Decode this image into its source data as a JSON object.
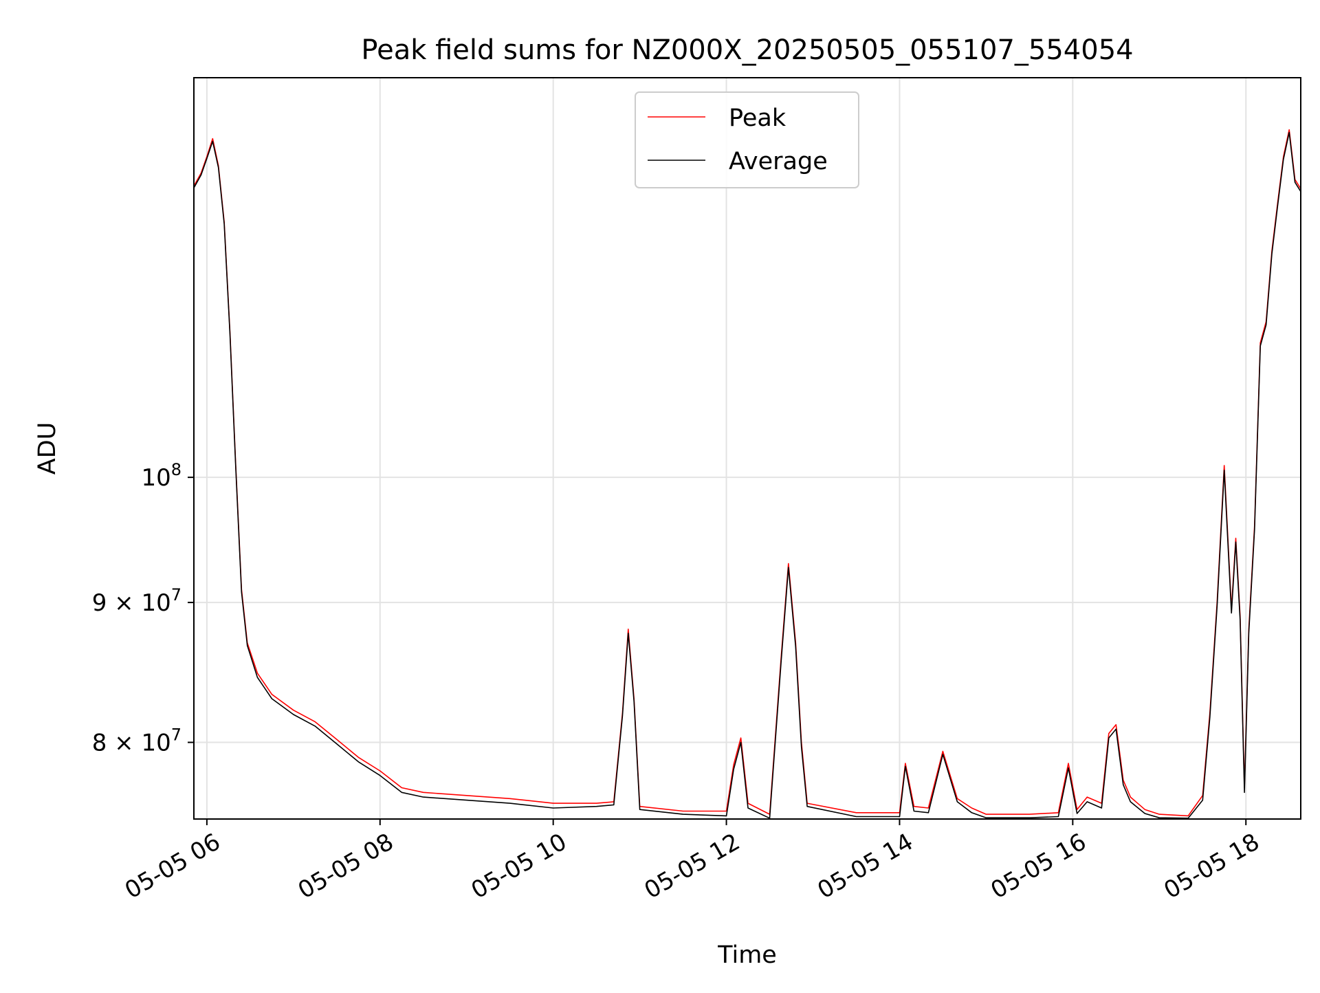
{
  "chart_data": {
    "type": "line",
    "title": "Peak field sums for NZ000X_20250505_055107_554054",
    "xlabel": "Time",
    "ylabel": "ADU",
    "yscale": "log",
    "grid": true,
    "legend_position": "top-center",
    "xlim": [
      "2025-05-05 05:51",
      "2025-05-05 18:38"
    ],
    "ylim": [
      75000000,
      140000000
    ],
    "x_ticks": [
      {
        "value": "2025-05-05 06:00",
        "label": "05-05 06"
      },
      {
        "value": "2025-05-05 08:00",
        "label": "05-05 08"
      },
      {
        "value": "2025-05-05 10:00",
        "label": "05-05 10"
      },
      {
        "value": "2025-05-05 12:00",
        "label": "05-05 12"
      },
      {
        "value": "2025-05-05 14:00",
        "label": "05-05 14"
      },
      {
        "value": "2025-05-05 16:00",
        "label": "05-05 16"
      },
      {
        "value": "2025-05-05 18:00",
        "label": "05-05 18"
      }
    ],
    "y_ticks": [
      {
        "value": 80000000,
        "base": "8 × 10",
        "exp": "7"
      },
      {
        "value": 90000000,
        "base": "9 × 10",
        "exp": "7"
      },
      {
        "value": 100000000,
        "base": "10",
        "exp": "8"
      }
    ],
    "series": [
      {
        "name": "Peak",
        "color": "#ff0000",
        "points": [
          [
            "2025-05-05 05:51",
            127800000
          ],
          [
            "2025-05-05 05:56",
            129200000
          ],
          [
            "2025-05-05 06:00",
            131000000
          ],
          [
            "2025-05-05 06:04",
            133000000
          ],
          [
            "2025-05-05 06:08",
            130000000
          ],
          [
            "2025-05-05 06:12",
            124000000
          ],
          [
            "2025-05-05 06:16",
            113000000
          ],
          [
            "2025-05-05 06:20",
            101000000
          ],
          [
            "2025-05-05 06:24",
            91000000
          ],
          [
            "2025-05-05 06:28",
            87000000
          ],
          [
            "2025-05-05 06:35",
            84800000
          ],
          [
            "2025-05-05 06:45",
            83300000
          ],
          [
            "2025-05-05 07:00",
            82200000
          ],
          [
            "2025-05-05 07:15",
            81400000
          ],
          [
            "2025-05-05 07:30",
            80200000
          ],
          [
            "2025-05-05 07:45",
            79000000
          ],
          [
            "2025-05-05 08:00",
            78100000
          ],
          [
            "2025-05-05 08:15",
            77000000
          ],
          [
            "2025-05-05 08:30",
            76700000
          ],
          [
            "2025-05-05 09:00",
            76500000
          ],
          [
            "2025-05-05 09:30",
            76300000
          ],
          [
            "2025-05-05 10:00",
            76000000
          ],
          [
            "2025-05-05 10:30",
            76000000
          ],
          [
            "2025-05-05 10:42",
            76100000
          ],
          [
            "2025-05-05 10:48",
            82000000
          ],
          [
            "2025-05-05 10:52",
            88000000
          ],
          [
            "2025-05-05 10:56",
            83000000
          ],
          [
            "2025-05-05 11:00",
            75800000
          ],
          [
            "2025-05-05 11:30",
            75500000
          ],
          [
            "2025-05-05 12:00",
            75500000
          ],
          [
            "2025-05-05 12:05",
            78500000
          ],
          [
            "2025-05-05 12:10",
            80300000
          ],
          [
            "2025-05-05 12:15",
            76000000
          ],
          [
            "2025-05-05 12:30",
            75300000
          ],
          [
            "2025-05-05 12:38",
            86000000
          ],
          [
            "2025-05-05 12:43",
            93000000
          ],
          [
            "2025-05-05 12:48",
            87000000
          ],
          [
            "2025-05-05 12:52",
            80000000
          ],
          [
            "2025-05-05 12:56",
            76000000
          ],
          [
            "2025-05-05 13:30",
            75400000
          ],
          [
            "2025-05-05 14:00",
            75400000
          ],
          [
            "2025-05-05 14:04",
            78600000
          ],
          [
            "2025-05-05 14:10",
            75800000
          ],
          [
            "2025-05-05 14:20",
            75700000
          ],
          [
            "2025-05-05 14:30",
            79400000
          ],
          [
            "2025-05-05 14:40",
            76300000
          ],
          [
            "2025-05-05 14:50",
            75700000
          ],
          [
            "2025-05-05 15:00",
            75300000
          ],
          [
            "2025-05-05 15:30",
            75300000
          ],
          [
            "2025-05-05 15:50",
            75400000
          ],
          [
            "2025-05-05 15:57",
            78600000
          ],
          [
            "2025-05-05 16:03",
            75600000
          ],
          [
            "2025-05-05 16:10",
            76400000
          ],
          [
            "2025-05-05 16:20",
            76000000
          ],
          [
            "2025-05-05 16:25",
            80600000
          ],
          [
            "2025-05-05 16:30",
            81200000
          ],
          [
            "2025-05-05 16:35",
            77500000
          ],
          [
            "2025-05-05 16:40",
            76400000
          ],
          [
            "2025-05-05 16:50",
            75600000
          ],
          [
            "2025-05-05 17:00",
            75300000
          ],
          [
            "2025-05-05 17:20",
            75200000
          ],
          [
            "2025-05-05 17:30",
            76500000
          ],
          [
            "2025-05-05 17:35",
            82000000
          ],
          [
            "2025-05-05 17:40",
            90000000
          ],
          [
            "2025-05-05 17:45",
            101000000
          ],
          [
            "2025-05-05 17:50",
            89500000
          ],
          [
            "2025-05-05 17:53",
            95000000
          ],
          [
            "2025-05-05 17:56",
            89000000
          ],
          [
            "2025-05-05 17:59",
            77000000
          ],
          [
            "2025-05-05 18:02",
            88000000
          ],
          [
            "2025-05-05 18:06",
            96000000
          ],
          [
            "2025-05-05 18:10",
            112000000
          ],
          [
            "2025-05-05 18:14",
            114000000
          ],
          [
            "2025-05-05 18:18",
            121000000
          ],
          [
            "2025-05-05 18:22",
            126000000
          ],
          [
            "2025-05-05 18:26",
            131000000
          ],
          [
            "2025-05-05 18:30",
            134000000
          ],
          [
            "2025-05-05 18:34",
            128500000
          ],
          [
            "2025-05-05 18:38",
            127500000
          ]
        ]
      },
      {
        "name": "Average",
        "color": "#000000",
        "points": [
          [
            "2025-05-05 05:51",
            127600000
          ],
          [
            "2025-05-05 05:56",
            129000000
          ],
          [
            "2025-05-05 06:00",
            130800000
          ],
          [
            "2025-05-05 06:04",
            132700000
          ],
          [
            "2025-05-05 06:08",
            129800000
          ],
          [
            "2025-05-05 06:12",
            123800000
          ],
          [
            "2025-05-05 06:16",
            112800000
          ],
          [
            "2025-05-05 06:20",
            100800000
          ],
          [
            "2025-05-05 06:24",
            90800000
          ],
          [
            "2025-05-05 06:28",
            86800000
          ],
          [
            "2025-05-05 06:35",
            84500000
          ],
          [
            "2025-05-05 06:45",
            83000000
          ],
          [
            "2025-05-05 07:00",
            81900000
          ],
          [
            "2025-05-05 07:15",
            81100000
          ],
          [
            "2025-05-05 07:30",
            79900000
          ],
          [
            "2025-05-05 07:45",
            78700000
          ],
          [
            "2025-05-05 08:00",
            77800000
          ],
          [
            "2025-05-05 08:15",
            76700000
          ],
          [
            "2025-05-05 08:30",
            76400000
          ],
          [
            "2025-05-05 09:00",
            76200000
          ],
          [
            "2025-05-05 09:30",
            76000000
          ],
          [
            "2025-05-05 10:00",
            75700000
          ],
          [
            "2025-05-05 10:30",
            75800000
          ],
          [
            "2025-05-05 10:42",
            75900000
          ],
          [
            "2025-05-05 10:48",
            81800000
          ],
          [
            "2025-05-05 10:52",
            87700000
          ],
          [
            "2025-05-05 10:56",
            82800000
          ],
          [
            "2025-05-05 11:00",
            75600000
          ],
          [
            "2025-05-05 11:30",
            75300000
          ],
          [
            "2025-05-05 12:00",
            75200000
          ],
          [
            "2025-05-05 12:05",
            78200000
          ],
          [
            "2025-05-05 12:10",
            80000000
          ],
          [
            "2025-05-05 12:15",
            75700000
          ],
          [
            "2025-05-05 12:30",
            75050000
          ],
          [
            "2025-05-05 12:38",
            85700000
          ],
          [
            "2025-05-05 12:43",
            92700000
          ],
          [
            "2025-05-05 12:48",
            86700000
          ],
          [
            "2025-05-05 12:52",
            79700000
          ],
          [
            "2025-05-05 12:56",
            75800000
          ],
          [
            "2025-05-05 13:30",
            75150000
          ],
          [
            "2025-05-05 14:00",
            75150000
          ],
          [
            "2025-05-05 14:04",
            78400000
          ],
          [
            "2025-05-05 14:10",
            75500000
          ],
          [
            "2025-05-05 14:20",
            75400000
          ],
          [
            "2025-05-05 14:30",
            79200000
          ],
          [
            "2025-05-05 14:40",
            76100000
          ],
          [
            "2025-05-05 14:50",
            75400000
          ],
          [
            "2025-05-05 15:00",
            75080000
          ],
          [
            "2025-05-05 15:30",
            75080000
          ],
          [
            "2025-05-05 15:50",
            75150000
          ],
          [
            "2025-05-05 15:57",
            78300000
          ],
          [
            "2025-05-05 16:03",
            75350000
          ],
          [
            "2025-05-05 16:10",
            76100000
          ],
          [
            "2025-05-05 16:20",
            75700000
          ],
          [
            "2025-05-05 16:25",
            80300000
          ],
          [
            "2025-05-05 16:30",
            80900000
          ],
          [
            "2025-05-05 16:35",
            77200000
          ],
          [
            "2025-05-05 16:40",
            76100000
          ],
          [
            "2025-05-05 16:50",
            75350000
          ],
          [
            "2025-05-05 17:00",
            75080000
          ],
          [
            "2025-05-05 17:20",
            75050000
          ],
          [
            "2025-05-05 17:30",
            76200000
          ],
          [
            "2025-05-05 17:35",
            81700000
          ],
          [
            "2025-05-05 17:40",
            89700000
          ],
          [
            "2025-05-05 17:45",
            100600000
          ],
          [
            "2025-05-05 17:50",
            89200000
          ],
          [
            "2025-05-05 17:53",
            94700000
          ],
          [
            "2025-05-05 17:56",
            88700000
          ],
          [
            "2025-05-05 17:59",
            76700000
          ],
          [
            "2025-05-05 18:02",
            87700000
          ],
          [
            "2025-05-05 18:06",
            95700000
          ],
          [
            "2025-05-05 18:10",
            111700000
          ],
          [
            "2025-05-05 18:14",
            113700000
          ],
          [
            "2025-05-05 18:18",
            120700000
          ],
          [
            "2025-05-05 18:22",
            125700000
          ],
          [
            "2025-05-05 18:26",
            130700000
          ],
          [
            "2025-05-05 18:30",
            133700000
          ],
          [
            "2025-05-05 18:34",
            128200000
          ],
          [
            "2025-05-05 18:38",
            127200000
          ]
        ]
      }
    ]
  }
}
